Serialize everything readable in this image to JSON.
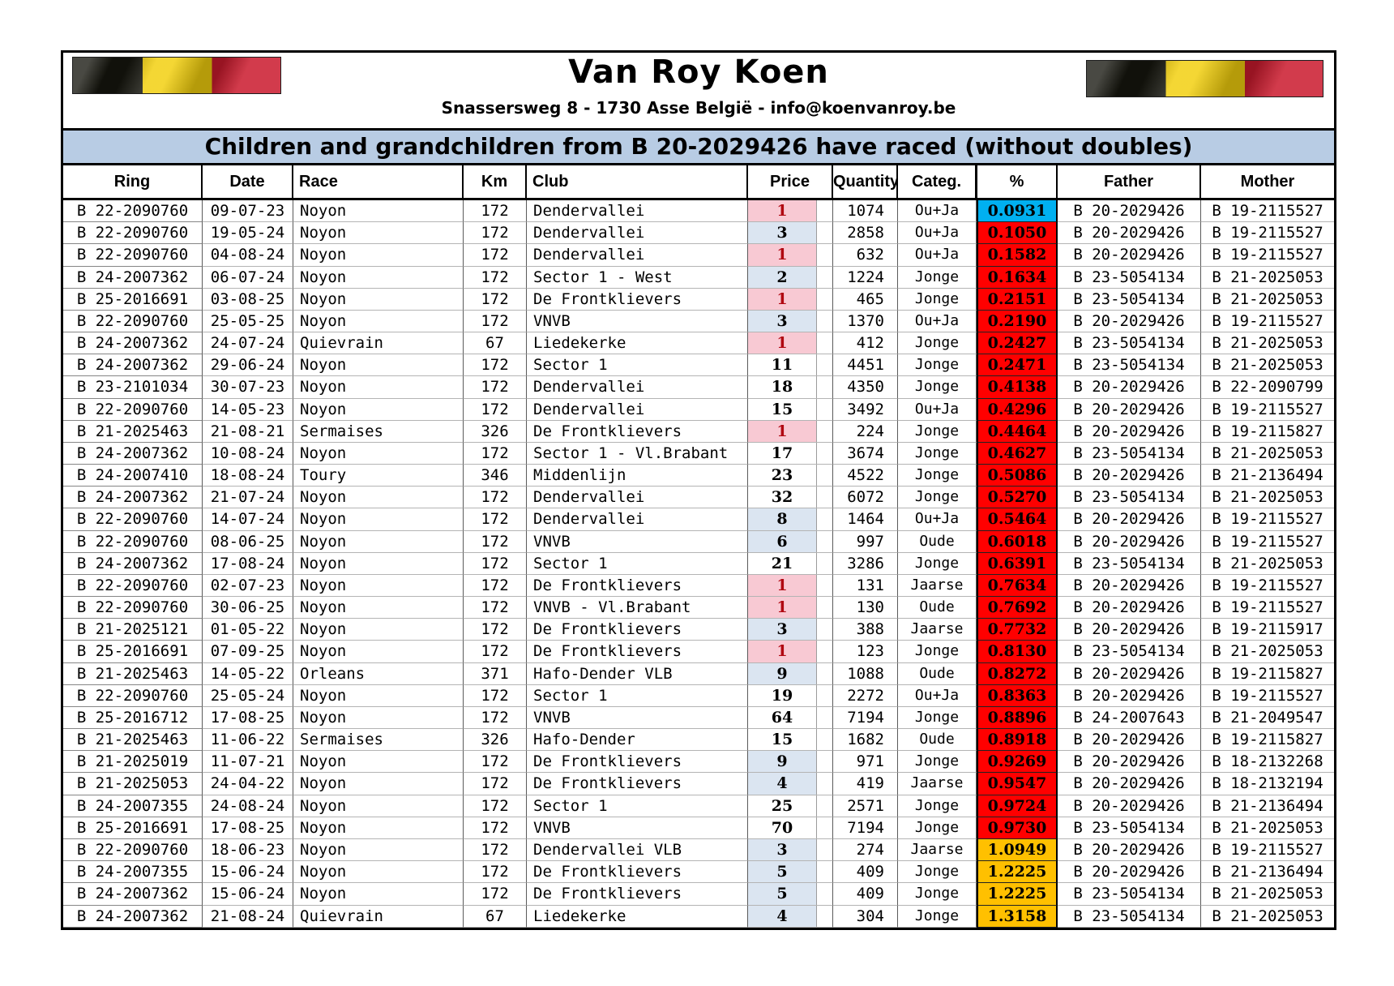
{
  "header": {
    "title": "Van Roy Koen",
    "address": "Snassersweg 8 - 1730 Asse België - info@koenvanroy.be",
    "banner": "Children and grandchildren from B 20-2029426 have raced (without doubles)",
    "left_flag": "belgian-flag",
    "right_flag": "belgian-flag"
  },
  "colors": {
    "banner_bg": "#b8cce4",
    "pct_blue": "#00b0f0",
    "pct_red": "#ff0000",
    "pct_orange": "#ffc000",
    "price_pink_bg": "#f8c9d3",
    "price_blue_bg": "#dbe5f1",
    "price_first_text": "#b00711",
    "flag_black": "#16160e",
    "flag_yellow": "#f2cf0d",
    "flag_red": "#cb1b2e"
  },
  "table": {
    "columns": [
      "Ring",
      "Date",
      "Race",
      "Km",
      "Club",
      "Price",
      "Quantity",
      "Categ.",
      "%",
      "Father",
      "Mother"
    ],
    "rows": [
      {
        "ring": "B 22-2090760",
        "date": "09-07-23",
        "race": "Noyon",
        "km": "172",
        "club": "Dendervallei",
        "price": "1",
        "price_style": "pink",
        "quantity": "1074",
        "categ": "Ou+Ja",
        "pct": "0.0931",
        "pct_style": "blue",
        "father": "B 20-2029426",
        "mother": "B 19-2115527"
      },
      {
        "ring": "B 22-2090760",
        "date": "19-05-24",
        "race": "Noyon",
        "km": "172",
        "club": "Dendervallei",
        "price": "3",
        "price_style": "blue",
        "quantity": "2858",
        "categ": "Ou+Ja",
        "pct": "0.1050",
        "pct_style": "red",
        "father": "B 20-2029426",
        "mother": "B 19-2115527"
      },
      {
        "ring": "B 22-2090760",
        "date": "04-08-24",
        "race": "Noyon",
        "km": "172",
        "club": "Dendervallei",
        "price": "1",
        "price_style": "pink",
        "quantity": "632",
        "categ": "Ou+Ja",
        "pct": "0.1582",
        "pct_style": "red",
        "father": "B 20-2029426",
        "mother": "B 19-2115527"
      },
      {
        "ring": "B 24-2007362",
        "date": "06-07-24",
        "race": "Noyon",
        "km": "172",
        "club": "Sector 1 - West",
        "price": "2",
        "price_style": "blue",
        "quantity": "1224",
        "categ": "Jonge",
        "pct": "0.1634",
        "pct_style": "red",
        "father": "B 23-5054134",
        "mother": "B 21-2025053"
      },
      {
        "ring": "B 25-2016691",
        "date": "03-08-25",
        "race": "Noyon",
        "km": "172",
        "club": "De Frontklievers",
        "price": "1",
        "price_style": "pink",
        "quantity": "465",
        "categ": "Jonge",
        "pct": "0.2151",
        "pct_style": "red",
        "father": "B 23-5054134",
        "mother": "B 21-2025053"
      },
      {
        "ring": "B 22-2090760",
        "date": "25-05-25",
        "race": "Noyon",
        "km": "172",
        "club": "VNVB",
        "price": "3",
        "price_style": "blue",
        "quantity": "1370",
        "categ": "Ou+Ja",
        "pct": "0.2190",
        "pct_style": "red",
        "father": "B 20-2029426",
        "mother": "B 19-2115527"
      },
      {
        "ring": "B 24-2007362",
        "date": "24-07-24",
        "race": "Quievrain",
        "km": "67",
        "club": "Liedekerke",
        "price": "1",
        "price_style": "pink",
        "quantity": "412",
        "categ": "Jonge",
        "pct": "0.2427",
        "pct_style": "red",
        "father": "B 23-5054134",
        "mother": "B 21-2025053"
      },
      {
        "ring": "B 24-2007362",
        "date": "29-06-24",
        "race": "Noyon",
        "km": "172",
        "club": "Sector 1",
        "price": "11",
        "price_style": "plain",
        "quantity": "4451",
        "categ": "Jonge",
        "pct": "0.2471",
        "pct_style": "red",
        "father": "B 23-5054134",
        "mother": "B 21-2025053"
      },
      {
        "ring": "B 23-2101034",
        "date": "30-07-23",
        "race": "Noyon",
        "km": "172",
        "club": "Dendervallei",
        "price": "18",
        "price_style": "plain",
        "quantity": "4350",
        "categ": "Jonge",
        "pct": "0.4138",
        "pct_style": "red",
        "father": "B 20-2029426",
        "mother": "B 22-2090799"
      },
      {
        "ring": "B 22-2090760",
        "date": "14-05-23",
        "race": "Noyon",
        "km": "172",
        "club": "Dendervallei",
        "price": "15",
        "price_style": "plain",
        "quantity": "3492",
        "categ": "Ou+Ja",
        "pct": "0.4296",
        "pct_style": "red",
        "father": "B 20-2029426",
        "mother": "B 19-2115527"
      },
      {
        "ring": "B 21-2025463",
        "date": "21-08-21",
        "race": "Sermaises",
        "km": "326",
        "club": "De Frontklievers",
        "price": "1",
        "price_style": "pink",
        "quantity": "224",
        "categ": "Jonge",
        "pct": "0.4464",
        "pct_style": "red",
        "father": "B 20-2029426",
        "mother": "B 19-2115827"
      },
      {
        "ring": "B 24-2007362",
        "date": "10-08-24",
        "race": "Noyon",
        "km": "172",
        "club": "Sector 1 - Vl.Brabant",
        "price": "17",
        "price_style": "plain",
        "quantity": "3674",
        "categ": "Jonge",
        "pct": "0.4627",
        "pct_style": "red",
        "father": "B 23-5054134",
        "mother": "B 21-2025053"
      },
      {
        "ring": "B 24-2007410",
        "date": "18-08-24",
        "race": "Toury",
        "km": "346",
        "club": "Middenlijn",
        "price": "23",
        "price_style": "plain",
        "quantity": "4522",
        "categ": "Jonge",
        "pct": "0.5086",
        "pct_style": "red",
        "father": "B 20-2029426",
        "mother": "B 21-2136494"
      },
      {
        "ring": "B 24-2007362",
        "date": "21-07-24",
        "race": "Noyon",
        "km": "172",
        "club": "Dendervallei",
        "price": "32",
        "price_style": "plain",
        "quantity": "6072",
        "categ": "Jonge",
        "pct": "0.5270",
        "pct_style": "red",
        "father": "B 23-5054134",
        "mother": "B 21-2025053"
      },
      {
        "ring": "B 22-2090760",
        "date": "14-07-24",
        "race": "Noyon",
        "km": "172",
        "club": "Dendervallei",
        "price": "8",
        "price_style": "blue",
        "quantity": "1464",
        "categ": "Ou+Ja",
        "pct": "0.5464",
        "pct_style": "red",
        "father": "B 20-2029426",
        "mother": "B 19-2115527"
      },
      {
        "ring": "B 22-2090760",
        "date": "08-06-25",
        "race": "Noyon",
        "km": "172",
        "club": "VNVB",
        "price": "6",
        "price_style": "blue",
        "quantity": "997",
        "categ": "Oude",
        "pct": "0.6018",
        "pct_style": "red",
        "father": "B 20-2029426",
        "mother": "B 19-2115527"
      },
      {
        "ring": "B 24-2007362",
        "date": "17-08-24",
        "race": "Noyon",
        "km": "172",
        "club": "Sector 1",
        "price": "21",
        "price_style": "plain",
        "quantity": "3286",
        "categ": "Jonge",
        "pct": "0.6391",
        "pct_style": "red",
        "father": "B 23-5054134",
        "mother": "B 21-2025053"
      },
      {
        "ring": "B 22-2090760",
        "date": "02-07-23",
        "race": "Noyon",
        "km": "172",
        "club": "De Frontklievers",
        "price": "1",
        "price_style": "pink",
        "quantity": "131",
        "categ": "Jaarse",
        "pct": "0.7634",
        "pct_style": "red",
        "father": "B 20-2029426",
        "mother": "B 19-2115527"
      },
      {
        "ring": "B 22-2090760",
        "date": "30-06-25",
        "race": "Noyon",
        "km": "172",
        "club": "VNVB - Vl.Brabant",
        "price": "1",
        "price_style": "pink",
        "quantity": "130",
        "categ": "Oude",
        "pct": "0.7692",
        "pct_style": "red",
        "father": "B 20-2029426",
        "mother": "B 19-2115527"
      },
      {
        "ring": "B 21-2025121",
        "date": "01-05-22",
        "race": "Noyon",
        "km": "172",
        "club": "De Frontklievers",
        "price": "3",
        "price_style": "blue",
        "quantity": "388",
        "categ": "Jaarse",
        "pct": "0.7732",
        "pct_style": "red",
        "father": "B 20-2029426",
        "mother": "B 19-2115917"
      },
      {
        "ring": "B 25-2016691",
        "date": "07-09-25",
        "race": "Noyon",
        "km": "172",
        "club": "De Frontklievers",
        "price": "1",
        "price_style": "pink",
        "quantity": "123",
        "categ": "Jonge",
        "pct": "0.8130",
        "pct_style": "red",
        "father": "B 23-5054134",
        "mother": "B 21-2025053"
      },
      {
        "ring": "B 21-2025463",
        "date": "14-05-22",
        "race": "Orleans",
        "km": "371",
        "club": "Hafo-Dender VLB",
        "price": "9",
        "price_style": "blue",
        "quantity": "1088",
        "categ": "Oude",
        "pct": "0.8272",
        "pct_style": "red",
        "father": "B 20-2029426",
        "mother": "B 19-2115827"
      },
      {
        "ring": "B 22-2090760",
        "date": "25-05-24",
        "race": "Noyon",
        "km": "172",
        "club": "Sector 1",
        "price": "19",
        "price_style": "plain",
        "quantity": "2272",
        "categ": "Ou+Ja",
        "pct": "0.8363",
        "pct_style": "red",
        "father": "B 20-2029426",
        "mother": "B 19-2115527"
      },
      {
        "ring": "B 25-2016712",
        "date": "17-08-25",
        "race": "Noyon",
        "km": "172",
        "club": "VNVB",
        "price": "64",
        "price_style": "plain",
        "quantity": "7194",
        "categ": "Jonge",
        "pct": "0.8896",
        "pct_style": "red",
        "father": "B 24-2007643",
        "mother": "B 21-2049547"
      },
      {
        "ring": "B 21-2025463",
        "date": "11-06-22",
        "race": "Sermaises",
        "km": "326",
        "club": "Hafo-Dender",
        "price": "15",
        "price_style": "plain",
        "quantity": "1682",
        "categ": "Oude",
        "pct": "0.8918",
        "pct_style": "red",
        "father": "B 20-2029426",
        "mother": "B 19-2115827"
      },
      {
        "ring": "B 21-2025019",
        "date": "11-07-21",
        "race": "Noyon",
        "km": "172",
        "club": "De Frontklievers",
        "price": "9",
        "price_style": "blue",
        "quantity": "971",
        "categ": "Jonge",
        "pct": "0.9269",
        "pct_style": "red",
        "father": "B 20-2029426",
        "mother": "B 18-2132268"
      },
      {
        "ring": "B 21-2025053",
        "date": "24-04-22",
        "race": "Noyon",
        "km": "172",
        "club": "De Frontklievers",
        "price": "4",
        "price_style": "blue",
        "quantity": "419",
        "categ": "Jaarse",
        "pct": "0.9547",
        "pct_style": "red",
        "father": "B 20-2029426",
        "mother": "B 18-2132194"
      },
      {
        "ring": "B 24-2007355",
        "date": "24-08-24",
        "race": "Noyon",
        "km": "172",
        "club": "Sector 1",
        "price": "25",
        "price_style": "plain",
        "quantity": "2571",
        "categ": "Jonge",
        "pct": "0.9724",
        "pct_style": "red",
        "father": "B 20-2029426",
        "mother": "B 21-2136494"
      },
      {
        "ring": "B 25-2016691",
        "date": "17-08-25",
        "race": "Noyon",
        "km": "172",
        "club": "VNVB",
        "price": "70",
        "price_style": "plain",
        "quantity": "7194",
        "categ": "Jonge",
        "pct": "0.9730",
        "pct_style": "red",
        "father": "B 23-5054134",
        "mother": "B 21-2025053"
      },
      {
        "ring": "B 22-2090760",
        "date": "18-06-23",
        "race": "Noyon",
        "km": "172",
        "club": "Dendervallei VLB",
        "price": "3",
        "price_style": "blue",
        "quantity": "274",
        "categ": "Jaarse",
        "pct": "1.0949",
        "pct_style": "orange",
        "father": "B 20-2029426",
        "mother": "B 19-2115527"
      },
      {
        "ring": "B 24-2007355",
        "date": "15-06-24",
        "race": "Noyon",
        "km": "172",
        "club": "De Frontklievers",
        "price": "5",
        "price_style": "blue",
        "quantity": "409",
        "categ": "Jonge",
        "pct": "1.2225",
        "pct_style": "orange",
        "father": "B 20-2029426",
        "mother": "B 21-2136494"
      },
      {
        "ring": "B 24-2007362",
        "date": "15-06-24",
        "race": "Noyon",
        "km": "172",
        "club": "De Frontklievers",
        "price": "5",
        "price_style": "blue",
        "quantity": "409",
        "categ": "Jonge",
        "pct": "1.2225",
        "pct_style": "orange",
        "father": "B 23-5054134",
        "mother": "B 21-2025053"
      },
      {
        "ring": "B 24-2007362",
        "date": "21-08-24",
        "race": "Quievrain",
        "km": "67",
        "club": "Liedekerke",
        "price": "4",
        "price_style": "blue",
        "quantity": "304",
        "categ": "Jonge",
        "pct": "1.3158",
        "pct_style": "orange",
        "father": "B 23-5054134",
        "mother": "B 21-2025053"
      }
    ]
  }
}
